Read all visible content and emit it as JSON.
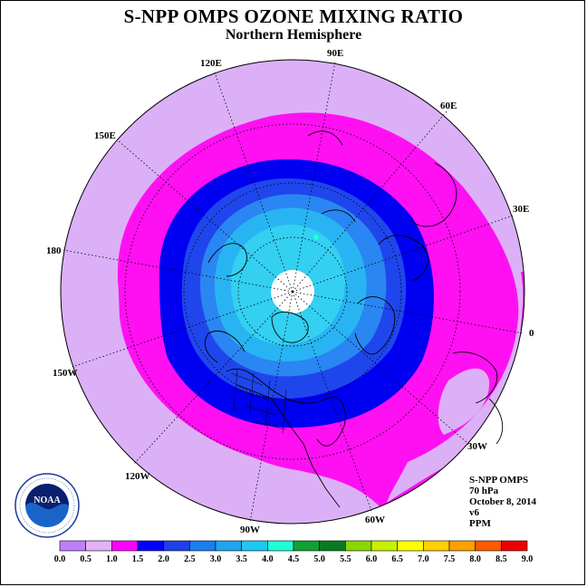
{
  "title": "S-NPP OMPS OZONE MIXING RATIO",
  "subtitle": "Northern Hemisphere",
  "longitude_labels": [
    "90E",
    "60E",
    "30E",
    "0",
    "30W",
    "60W",
    "90W",
    "120W",
    "150W",
    "180",
    "150E",
    "120E"
  ],
  "info": {
    "product": "S-NPP OMPS",
    "level": "70 hPa",
    "date": "October 8, 2014",
    "version": "v6",
    "units": "PPM"
  },
  "logo_text": "NOAA",
  "colorbar": {
    "ticks": [
      "0.0",
      "0.5",
      "1.0",
      "1.5",
      "2.0",
      "2.5",
      "3.0",
      "3.5",
      "4.0",
      "4.5",
      "5.0",
      "5.5",
      "6.0",
      "6.5",
      "7.0",
      "7.5",
      "8.0",
      "8.5",
      "9.0"
    ],
    "colors": [
      "#c07ff8",
      "#e3b2f8",
      "#ff00ff",
      "#0000ff",
      "#1f40e8",
      "#1a7ef0",
      "#1fa6f0",
      "#1fc8f0",
      "#1fffd8",
      "#11a032",
      "#0a7a22",
      "#88d800",
      "#c8f000",
      "#ffff00",
      "#ffcf00",
      "#ffa000",
      "#ff5a00",
      "#ee0000",
      "#8b5a2b"
    ]
  },
  "colors": {
    "pale_violet": "#dcb0f6",
    "magenta": "#ff10f2",
    "deep_blue": "#0000f0",
    "blue": "#1f46ec",
    "mid_blue": "#2a86f2",
    "light_blue": "#28b4f2",
    "cyan": "#33d0f2"
  }
}
